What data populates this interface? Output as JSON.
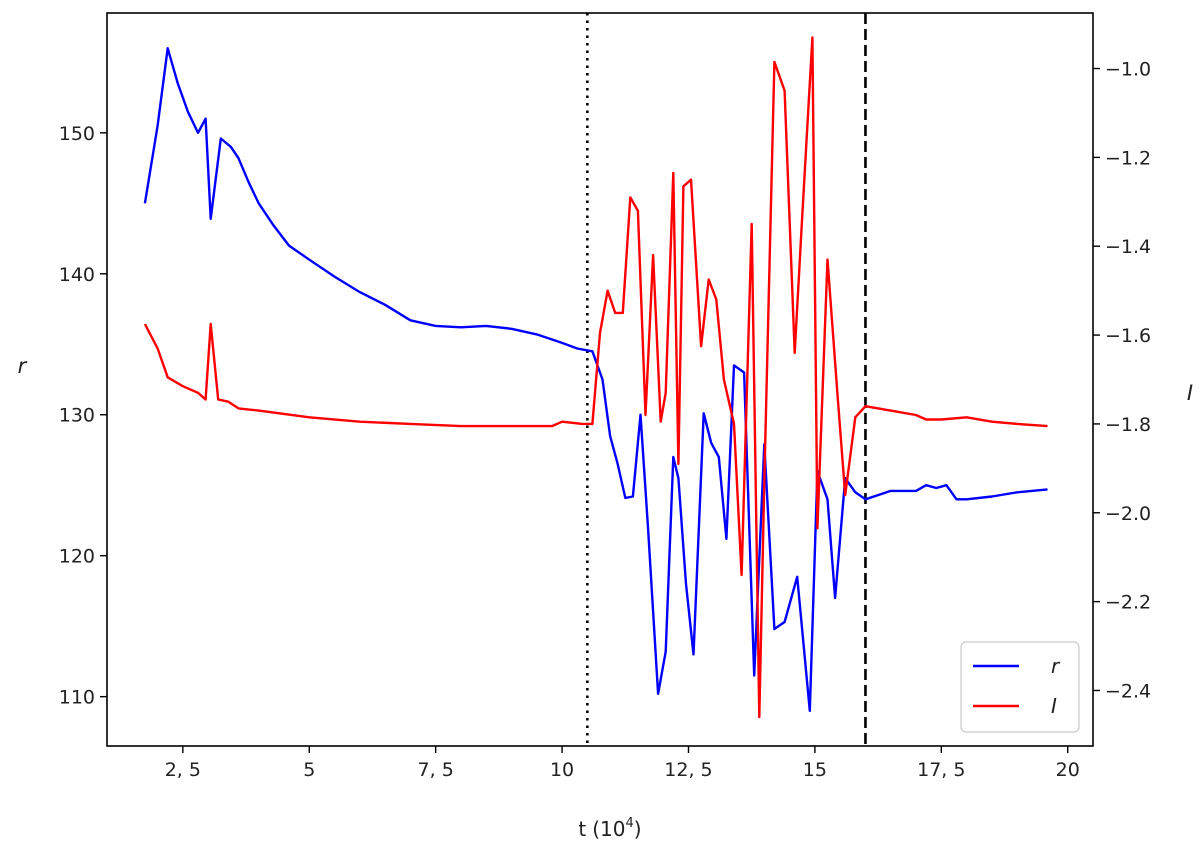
{
  "chart_data": {
    "type": "line",
    "xlabel": "t",
    "xlabel_unit": "(10",
    "xlabel_unit_exp": "4",
    "xlabel_unit_close": ")",
    "ylabel_left": "r",
    "ylabel_right": "I",
    "xlim": [
      1.0,
      20.5
    ],
    "ylim_left": [
      106.5,
      158.5
    ],
    "ylim_right": [
      -2.525,
      -0.875
    ],
    "x_ticks": [
      2.5,
      5,
      7.5,
      10,
      12.5,
      15,
      17.5,
      20
    ],
    "x_tick_labels": [
      "2, 5",
      "5",
      "7, 5",
      "10",
      "12, 5",
      "15",
      "17, 5",
      "20"
    ],
    "y_left_ticks": [
      110,
      120,
      130,
      140,
      150
    ],
    "y_left_tick_labels": [
      "110",
      "120",
      "130",
      "140",
      "150"
    ],
    "y_right_ticks": [
      -2.4,
      -2.2,
      -2.0,
      -1.8,
      -1.6,
      -1.4,
      -1.2,
      -1.0
    ],
    "y_right_tick_labels": [
      "−2.4",
      "−2.2",
      "−2.0",
      "−1.8",
      "−1.6",
      "−1.4",
      "−1.2",
      "−1.0"
    ],
    "grid": false,
    "legend_position": "bottom-right",
    "vlines": [
      {
        "x": 10.5,
        "style": "dotted"
      },
      {
        "x": 16.0,
        "style": "dashed"
      }
    ],
    "series": [
      {
        "name": "r",
        "axis": "left",
        "color": "#0000ff",
        "x": [
          1.75,
          2.0,
          2.2,
          2.4,
          2.6,
          2.8,
          2.95,
          3.05,
          3.25,
          3.45,
          3.6,
          3.8,
          4.0,
          4.3,
          4.6,
          5.0,
          5.5,
          6.0,
          6.5,
          7.0,
          7.5,
          8.0,
          8.5,
          9.0,
          9.5,
          10.0,
          10.3,
          10.6,
          10.8,
          10.95,
          11.1,
          11.25,
          11.4,
          11.55,
          11.7,
          11.9,
          12.05,
          12.2,
          12.3,
          12.45,
          12.6,
          12.8,
          12.95,
          13.1,
          13.25,
          13.4,
          13.6,
          13.8,
          14.0,
          14.2,
          14.4,
          14.65,
          14.9,
          15.05,
          15.25,
          15.4,
          15.6,
          15.8,
          16.0,
          16.5,
          17.0,
          17.2,
          17.4,
          17.6,
          17.8,
          18.0,
          18.5,
          19.0,
          19.6
        ],
        "values": [
          145,
          150.5,
          156,
          153.5,
          151.5,
          150,
          151,
          143.9,
          149.6,
          149,
          148.2,
          146.5,
          145,
          143.4,
          142,
          141,
          139.8,
          138.7,
          137.8,
          136.7,
          136.3,
          136.2,
          136.3,
          136.1,
          135.7,
          135.1,
          134.7,
          134.5,
          132.5,
          128.5,
          126.5,
          124.1,
          124.2,
          130,
          122,
          110.2,
          113.2,
          127,
          125.5,
          118,
          113,
          130.1,
          128,
          127,
          121.2,
          133.5,
          133,
          111.5,
          127.9,
          114.8,
          115.3,
          118.5,
          109,
          126,
          124,
          117,
          125.5,
          124.5,
          124,
          124.6,
          124.6,
          125,
          124.8,
          125,
          124,
          124,
          124.2,
          124.5,
          124.7
        ]
      },
      {
        "name": "I",
        "axis": "right",
        "color": "#ff0000",
        "x": [
          1.75,
          2.0,
          2.2,
          2.5,
          2.8,
          2.95,
          3.05,
          3.2,
          3.4,
          3.6,
          4.0,
          5.0,
          6.0,
          7.0,
          8.0,
          9.0,
          9.8,
          10.0,
          10.4,
          10.6,
          10.75,
          10.9,
          11.05,
          11.2,
          11.35,
          11.5,
          11.65,
          11.8,
          11.95,
          12.05,
          12.2,
          12.3,
          12.4,
          12.55,
          12.75,
          12.9,
          13.05,
          13.2,
          13.4,
          13.55,
          13.75,
          13.9,
          14.0,
          14.2,
          14.4,
          14.6,
          14.75,
          14.95,
          15.05,
          15.25,
          15.45,
          15.6,
          15.8,
          16.0,
          16.5,
          17.0,
          17.2,
          17.5,
          18.0,
          18.5,
          19.0,
          19.6
        ],
        "values": [
          -1.575,
          -1.63,
          -1.695,
          -1.715,
          -1.73,
          -1.745,
          -1.575,
          -1.745,
          -1.75,
          -1.765,
          -1.77,
          -1.785,
          -1.795,
          -1.8,
          -1.805,
          -1.805,
          -1.805,
          -1.795,
          -1.8,
          -1.8,
          -1.595,
          -1.5,
          -1.55,
          -1.55,
          -1.29,
          -1.32,
          -1.78,
          -1.42,
          -1.795,
          -1.73,
          -1.235,
          -1.89,
          -1.265,
          -1.25,
          -1.625,
          -1.475,
          -1.52,
          -1.7,
          -1.8,
          -2.14,
          -1.35,
          -2.46,
          -1.93,
          -0.985,
          -1.05,
          -1.64,
          -1.33,
          -0.93,
          -2.035,
          -1.43,
          -1.74,
          -1.96,
          -1.785,
          -1.76,
          -1.77,
          -1.78,
          -1.79,
          -1.79,
          -1.785,
          -1.795,
          -1.8,
          -1.805
        ]
      }
    ]
  }
}
